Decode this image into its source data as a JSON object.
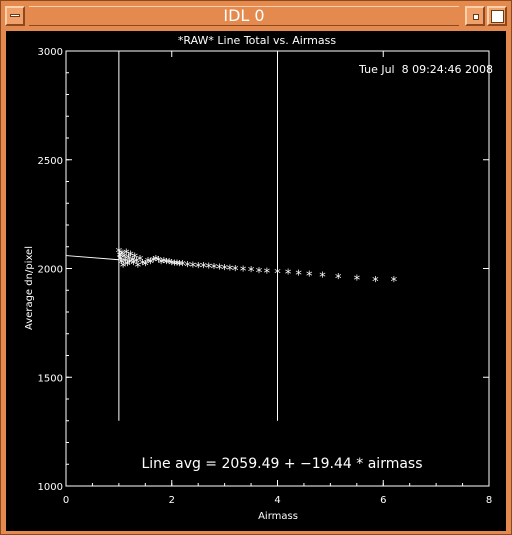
{
  "window": {
    "title": "IDL 0"
  },
  "chart_data": {
    "type": "scatter",
    "title": "*RAW* Line Total vs. Airmass",
    "timestamp": "Tue Jul  8 09:24:46 2008",
    "xlabel": "Airmass",
    "ylabel": "Average dn/pixel",
    "xlim": [
      0,
      8
    ],
    "ylim": [
      1000,
      3000
    ],
    "xticks": [
      "0",
      "2",
      "4",
      "6",
      "8"
    ],
    "yticks": [
      "1000",
      "1500",
      "2000",
      "2500",
      "3000"
    ],
    "xtick_values": [
      0,
      2,
      4,
      6,
      8
    ],
    "ytick_values": [
      1000,
      1500,
      2000,
      2500,
      3000
    ],
    "vertical_lines": [
      1,
      4
    ],
    "fit_label": "Line avg = 2059.49 + −19.44 * airmass",
    "fit": {
      "intercept": 2059.49,
      "slope": -19.44,
      "x_range": [
        0,
        1
      ]
    },
    "points": [
      {
        "x": 1.0,
        "y": 2075
      },
      {
        "x": 1.02,
        "y": 2055
      },
      {
        "x": 1.03,
        "y": 2040
      },
      {
        "x": 1.05,
        "y": 2025
      },
      {
        "x": 1.06,
        "y": 2065
      },
      {
        "x": 1.08,
        "y": 2010
      },
      {
        "x": 1.1,
        "y": 2050
      },
      {
        "x": 1.12,
        "y": 2030
      },
      {
        "x": 1.14,
        "y": 2070
      },
      {
        "x": 1.16,
        "y": 2015
      },
      {
        "x": 1.18,
        "y": 2045
      },
      {
        "x": 1.2,
        "y": 2025
      },
      {
        "x": 1.22,
        "y": 2060
      },
      {
        "x": 1.25,
        "y": 2035
      },
      {
        "x": 1.28,
        "y": 2020
      },
      {
        "x": 1.3,
        "y": 2050
      },
      {
        "x": 1.33,
        "y": 2030
      },
      {
        "x": 1.36,
        "y": 2010
      },
      {
        "x": 1.4,
        "y": 2040
      },
      {
        "x": 1.45,
        "y": 2020
      },
      {
        "x": 1.5,
        "y": 2015
      },
      {
        "x": 1.55,
        "y": 2030
      },
      {
        "x": 1.6,
        "y": 2025
      },
      {
        "x": 1.65,
        "y": 2035
      },
      {
        "x": 1.7,
        "y": 2040
      },
      {
        "x": 1.75,
        "y": 2035
      },
      {
        "x": 1.8,
        "y": 2025
      },
      {
        "x": 1.85,
        "y": 2030
      },
      {
        "x": 1.9,
        "y": 2025
      },
      {
        "x": 1.95,
        "y": 2025
      },
      {
        "x": 2.0,
        "y": 2020
      },
      {
        "x": 2.05,
        "y": 2018
      },
      {
        "x": 2.1,
        "y": 2018
      },
      {
        "x": 2.15,
        "y": 2015
      },
      {
        "x": 2.2,
        "y": 2015
      },
      {
        "x": 2.3,
        "y": 2012
      },
      {
        "x": 2.4,
        "y": 2010
      },
      {
        "x": 2.5,
        "y": 2008
      },
      {
        "x": 2.6,
        "y": 2006
      },
      {
        "x": 2.7,
        "y": 2004
      },
      {
        "x": 2.8,
        "y": 2002
      },
      {
        "x": 2.9,
        "y": 2000
      },
      {
        "x": 3.0,
        "y": 1998
      },
      {
        "x": 3.1,
        "y": 1995
      },
      {
        "x": 3.2,
        "y": 1993
      },
      {
        "x": 3.35,
        "y": 1990
      },
      {
        "x": 3.5,
        "y": 1988
      },
      {
        "x": 3.65,
        "y": 1985
      },
      {
        "x": 3.8,
        "y": 1982
      },
      {
        "x": 4.0,
        "y": 1980
      },
      {
        "x": 4.2,
        "y": 1977
      },
      {
        "x": 4.4,
        "y": 1973
      },
      {
        "x": 4.6,
        "y": 1968
      },
      {
        "x": 4.85,
        "y": 1963
      },
      {
        "x": 5.15,
        "y": 1957
      },
      {
        "x": 5.5,
        "y": 1950
      },
      {
        "x": 5.85,
        "y": 1943
      },
      {
        "x": 6.2,
        "y": 1942
      }
    ],
    "colors": {
      "background": "#000000",
      "foreground": "#ffffff"
    }
  }
}
